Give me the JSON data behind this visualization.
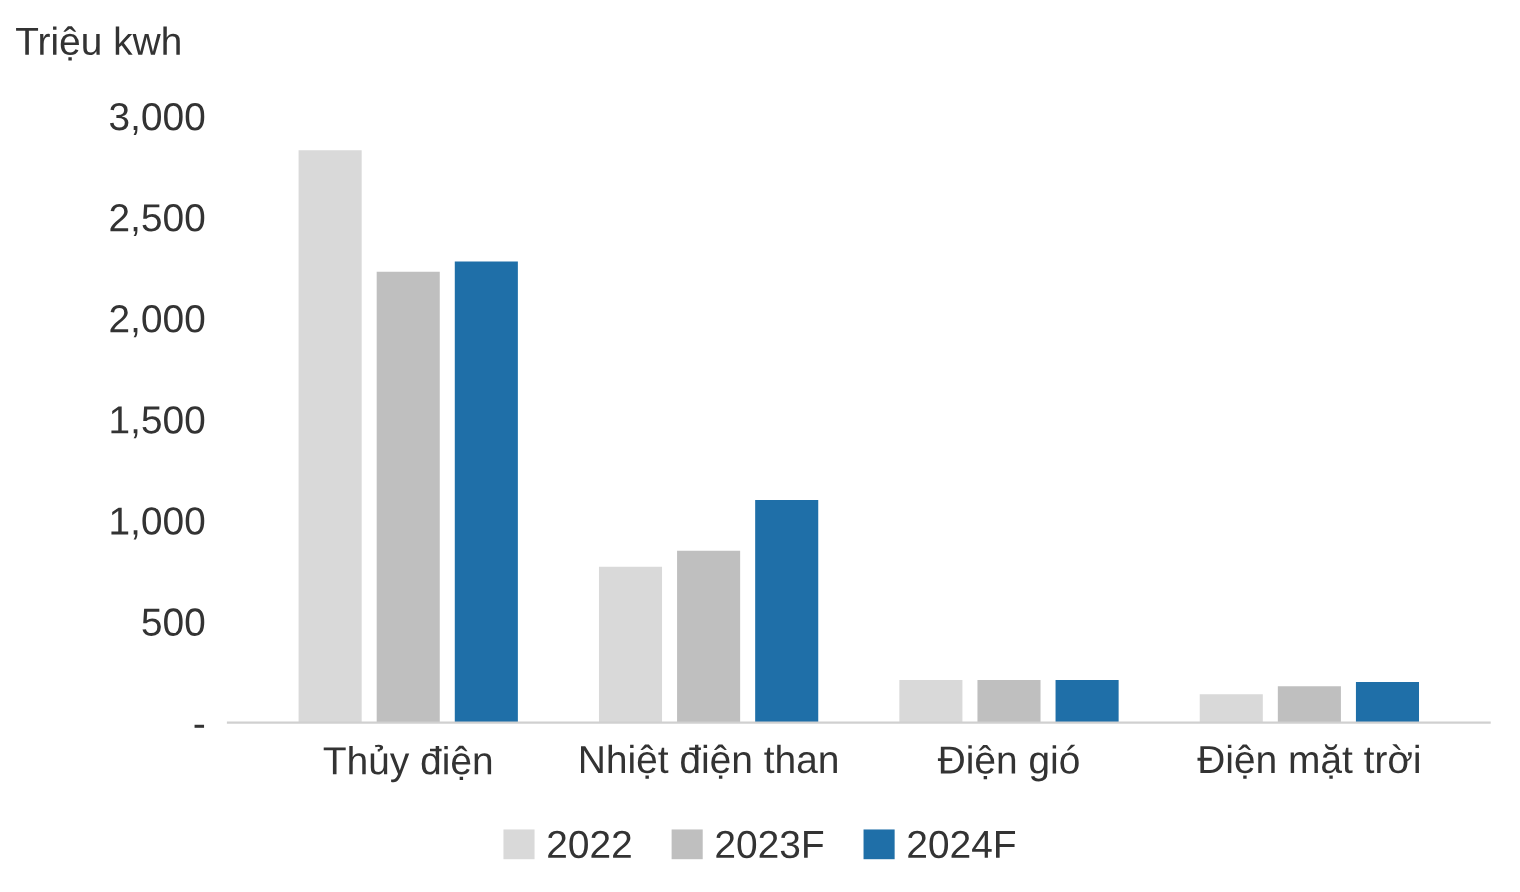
{
  "chart_data": {
    "type": "bar",
    "ylabel": "Triệu kwh",
    "categories": [
      "Thủy điện",
      "Nhiệt điện than",
      "Điện gió",
      "Điện mặt trời"
    ],
    "series": [
      {
        "name": "2022",
        "color": "#d9d9d9",
        "values": [
          2830,
          770,
          210,
          140
        ]
      },
      {
        "name": "2023F",
        "color": "#bfbfbf",
        "values": [
          2230,
          850,
          210,
          180
        ]
      },
      {
        "name": "2024F",
        "color": "#1f6fa8",
        "values": [
          2280,
          1100,
          210,
          200
        ]
      }
    ],
    "ylim": [
      0,
      3000
    ],
    "yticks": [
      {
        "value": 0,
        "label": "-"
      },
      {
        "value": 500,
        "label": "500"
      },
      {
        "value": 1000,
        "label": "1,000"
      },
      {
        "value": 1500,
        "label": "1,500"
      },
      {
        "value": 2000,
        "label": "2,000"
      },
      {
        "value": 2500,
        "label": "2,500"
      },
      {
        "value": 3000,
        "label": "3,000"
      }
    ],
    "grid": false,
    "legend": "bottom"
  }
}
